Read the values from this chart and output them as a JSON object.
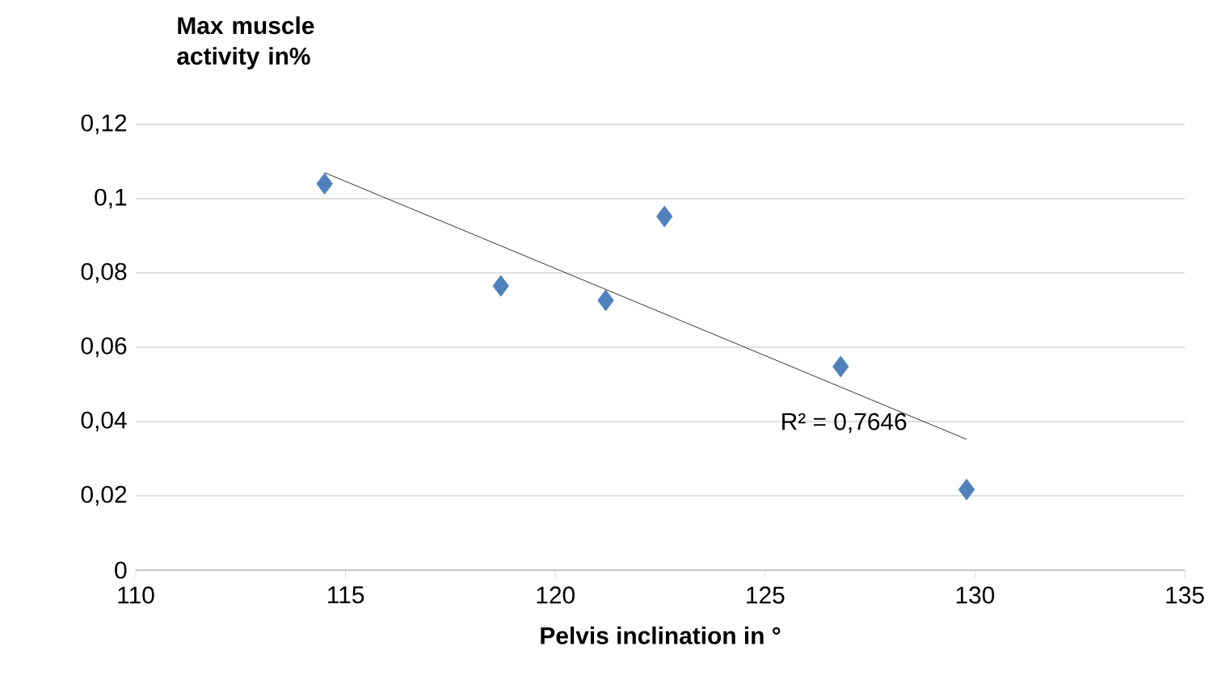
{
  "chart_data": {
    "type": "scatter",
    "xlabel": "Pelvis inclination in °",
    "ylabel": "Max muscle activity in%",
    "series": [
      {
        "color": "#4f81bd",
        "marker": "diamond",
        "x": [
          114.5,
          118.7,
          121.2,
          122.6,
          126.8,
          129.8
        ],
        "values": [
          0.104,
          0.0765,
          0.0726,
          0.0952,
          0.0548,
          0.0217
        ]
      },
      {
        "type": "line",
        "color": "#000000",
        "marker": "none",
        "x": [
          114.5,
          129.8
        ],
        "values": [
          0.107,
          0.0352
        ]
      }
    ],
    "xlim": [
      110,
      135
    ],
    "xticks": [
      110,
      115,
      120,
      125,
      130,
      135
    ],
    "ylim": [
      0,
      0.12
    ],
    "yticks": [
      {
        "value": 0,
        "label": "0"
      },
      {
        "value": 0.02,
        "label": "0,02"
      },
      {
        "value": 0.04,
        "label": "0,04"
      },
      {
        "value": 0.06,
        "label": "0,06"
      },
      {
        "value": 0.08,
        "label": "0,08"
      },
      {
        "value": 0.1,
        "label": "0,1"
      },
      {
        "value": 0.12,
        "label": "0,12"
      }
    ],
    "grid": "y",
    "annotations": [
      "R² = 0,7646"
    ]
  }
}
